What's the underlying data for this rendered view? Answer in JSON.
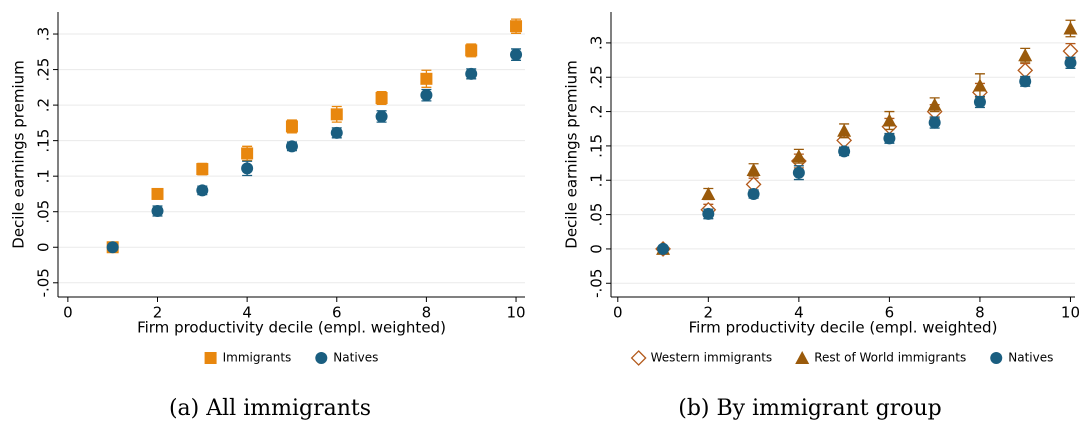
{
  "chart_data": [
    {
      "type": "scatter",
      "caption": "(a) All immigrants",
      "xlabel": "Firm productivity decile (empl. weighted)",
      "ylabel": "Decile earnings premium",
      "x": [
        1,
        2,
        3,
        4,
        5,
        6,
        7,
        8,
        9,
        10
      ],
      "xlim": [
        -0.22,
        10.2
      ],
      "xticks": [
        0,
        2,
        4,
        6,
        8,
        10
      ],
      "ylim": [
        -0.07,
        0.331
      ],
      "yticks": [
        {
          "value": -0.05,
          "label": "-.05"
        },
        0,
        {
          "value": 0.05,
          "label": ".05"
        },
        {
          "value": 0.1,
          "label": ".1"
        },
        {
          "value": 0.15,
          "label": ".15"
        },
        {
          "value": 0.2,
          "label": ".2"
        },
        {
          "value": 0.25,
          "label": ".25"
        },
        {
          "value": 0.3,
          "label": ".3"
        }
      ],
      "grid": true,
      "legend": "bottom",
      "series": [
        {
          "name": "Immigrants",
          "color": "#e8870e",
          "marker": "square",
          "values": [
            0,
            0.075,
            0.11,
            0.132,
            0.17,
            0.187,
            0.21,
            0.237,
            0.277,
            0.311
          ],
          "errors": [
            0.002,
            0.007,
            0.008,
            0.01,
            0.009,
            0.011,
            0.009,
            0.012,
            0.009,
            0.01
          ]
        },
        {
          "name": "Natives",
          "color": "#1a5e80",
          "marker": "circle",
          "values": [
            0,
            0.051,
            0.08,
            0.111,
            0.142,
            0.161,
            0.184,
            0.214,
            0.244,
            0.271
          ],
          "errors": [
            0.002,
            0.007,
            0.006,
            0.01,
            0.006,
            0.007,
            0.008,
            0.008,
            0.007,
            0.008
          ]
        }
      ]
    },
    {
      "type": "scatter",
      "caption": "(b) By immigrant group",
      "xlabel": "Firm productivity decile (empl. weighted)",
      "ylabel": "Decile earnings premium",
      "x": [
        1,
        2,
        3,
        4,
        5,
        6,
        7,
        8,
        9,
        10
      ],
      "xlim": [
        -0.15,
        10.1
      ],
      "xticks": [
        0,
        2,
        4,
        6,
        8,
        10
      ],
      "ylim": [
        -0.07,
        0.345
      ],
      "yticks": [
        {
          "value": -0.05,
          "label": "-.05"
        },
        0,
        {
          "value": 0.05,
          "label": ".05"
        },
        {
          "value": 0.1,
          "label": ".1"
        },
        {
          "value": 0.15,
          "label": ".15"
        },
        {
          "value": 0.2,
          "label": ".2"
        },
        {
          "value": 0.25,
          "label": ".25"
        },
        {
          "value": 0.3,
          "label": ".3"
        }
      ],
      "grid": true,
      "legend": "bottom",
      "series": [
        {
          "name": "Western immigrants",
          "color": "#b35a1c",
          "marker": "diamond-hollow",
          "values": [
            0,
            0.057,
            0.094,
            0.128,
            0.158,
            0.178,
            0.2,
            0.228,
            0.26,
            0.288
          ],
          "errors": [
            0.002,
            0.008,
            0.009,
            0.01,
            0.01,
            0.012,
            0.01,
            0.013,
            0.01,
            0.011
          ]
        },
        {
          "name": "Rest of World immigrants",
          "color": "#9a5a0b",
          "marker": "triangle",
          "values": [
            0,
            0.08,
            0.115,
            0.135,
            0.172,
            0.187,
            0.21,
            0.238,
            0.282,
            0.321
          ],
          "errors": [
            0.002,
            0.008,
            0.009,
            0.01,
            0.01,
            0.013,
            0.01,
            0.017,
            0.01,
            0.012
          ]
        },
        {
          "name": "Natives",
          "color": "#1a5e80",
          "marker": "circle",
          "values": [
            0,
            0.051,
            0.08,
            0.111,
            0.142,
            0.161,
            0.184,
            0.214,
            0.244,
            0.271
          ],
          "errors": [
            0.002,
            0.007,
            0.006,
            0.01,
            0.006,
            0.007,
            0.008,
            0.008,
            0.007,
            0.008
          ]
        }
      ]
    }
  ]
}
